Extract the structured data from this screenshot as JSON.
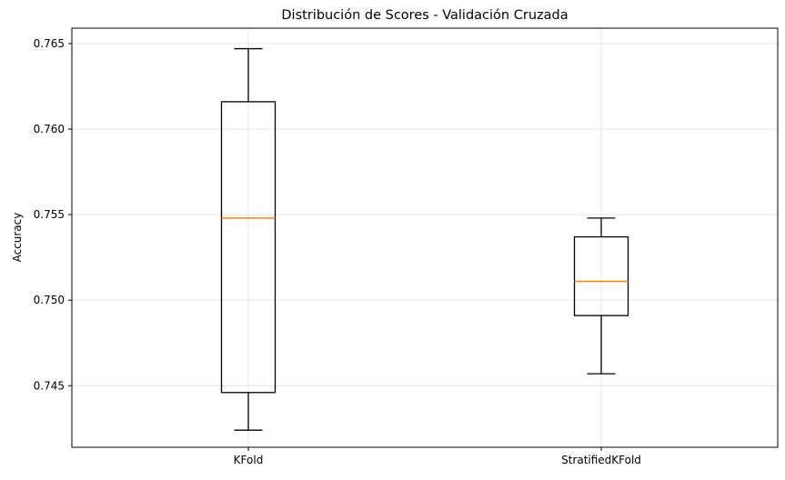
{
  "chart": {
    "title": "Distribución de Scores - Validación Cruzada",
    "ylabel": "Accuracy"
  },
  "chart_data": {
    "type": "boxplot",
    "title": "Distribución de Scores - Validación Cruzada",
    "xlabel": "",
    "ylabel": "Accuracy",
    "categories": [
      "KFold",
      "StratifiedKFold"
    ],
    "series": [
      {
        "name": "KFold",
        "min": 0.7424,
        "q1": 0.7446,
        "median": 0.7548,
        "q3": 0.7616,
        "max": 0.7647
      },
      {
        "name": "StratifiedKFold",
        "min": 0.7457,
        "q1": 0.7491,
        "median": 0.7511,
        "q3": 0.7537,
        "max": 0.7548
      }
    ],
    "ylim": [
      0.7414,
      0.7659
    ],
    "yticks": [
      0.745,
      0.75,
      0.755,
      0.76,
      0.765
    ],
    "ytick_labels": [
      "0.745",
      "0.750",
      "0.755",
      "0.760",
      "0.765"
    ],
    "grid": true,
    "legend": "none",
    "colors": {
      "box_line": "#000000",
      "median_line": "#ff7f0e",
      "grid_line": "#e7e7e7",
      "spine": "#000000",
      "background": "#ffffff"
    }
  }
}
